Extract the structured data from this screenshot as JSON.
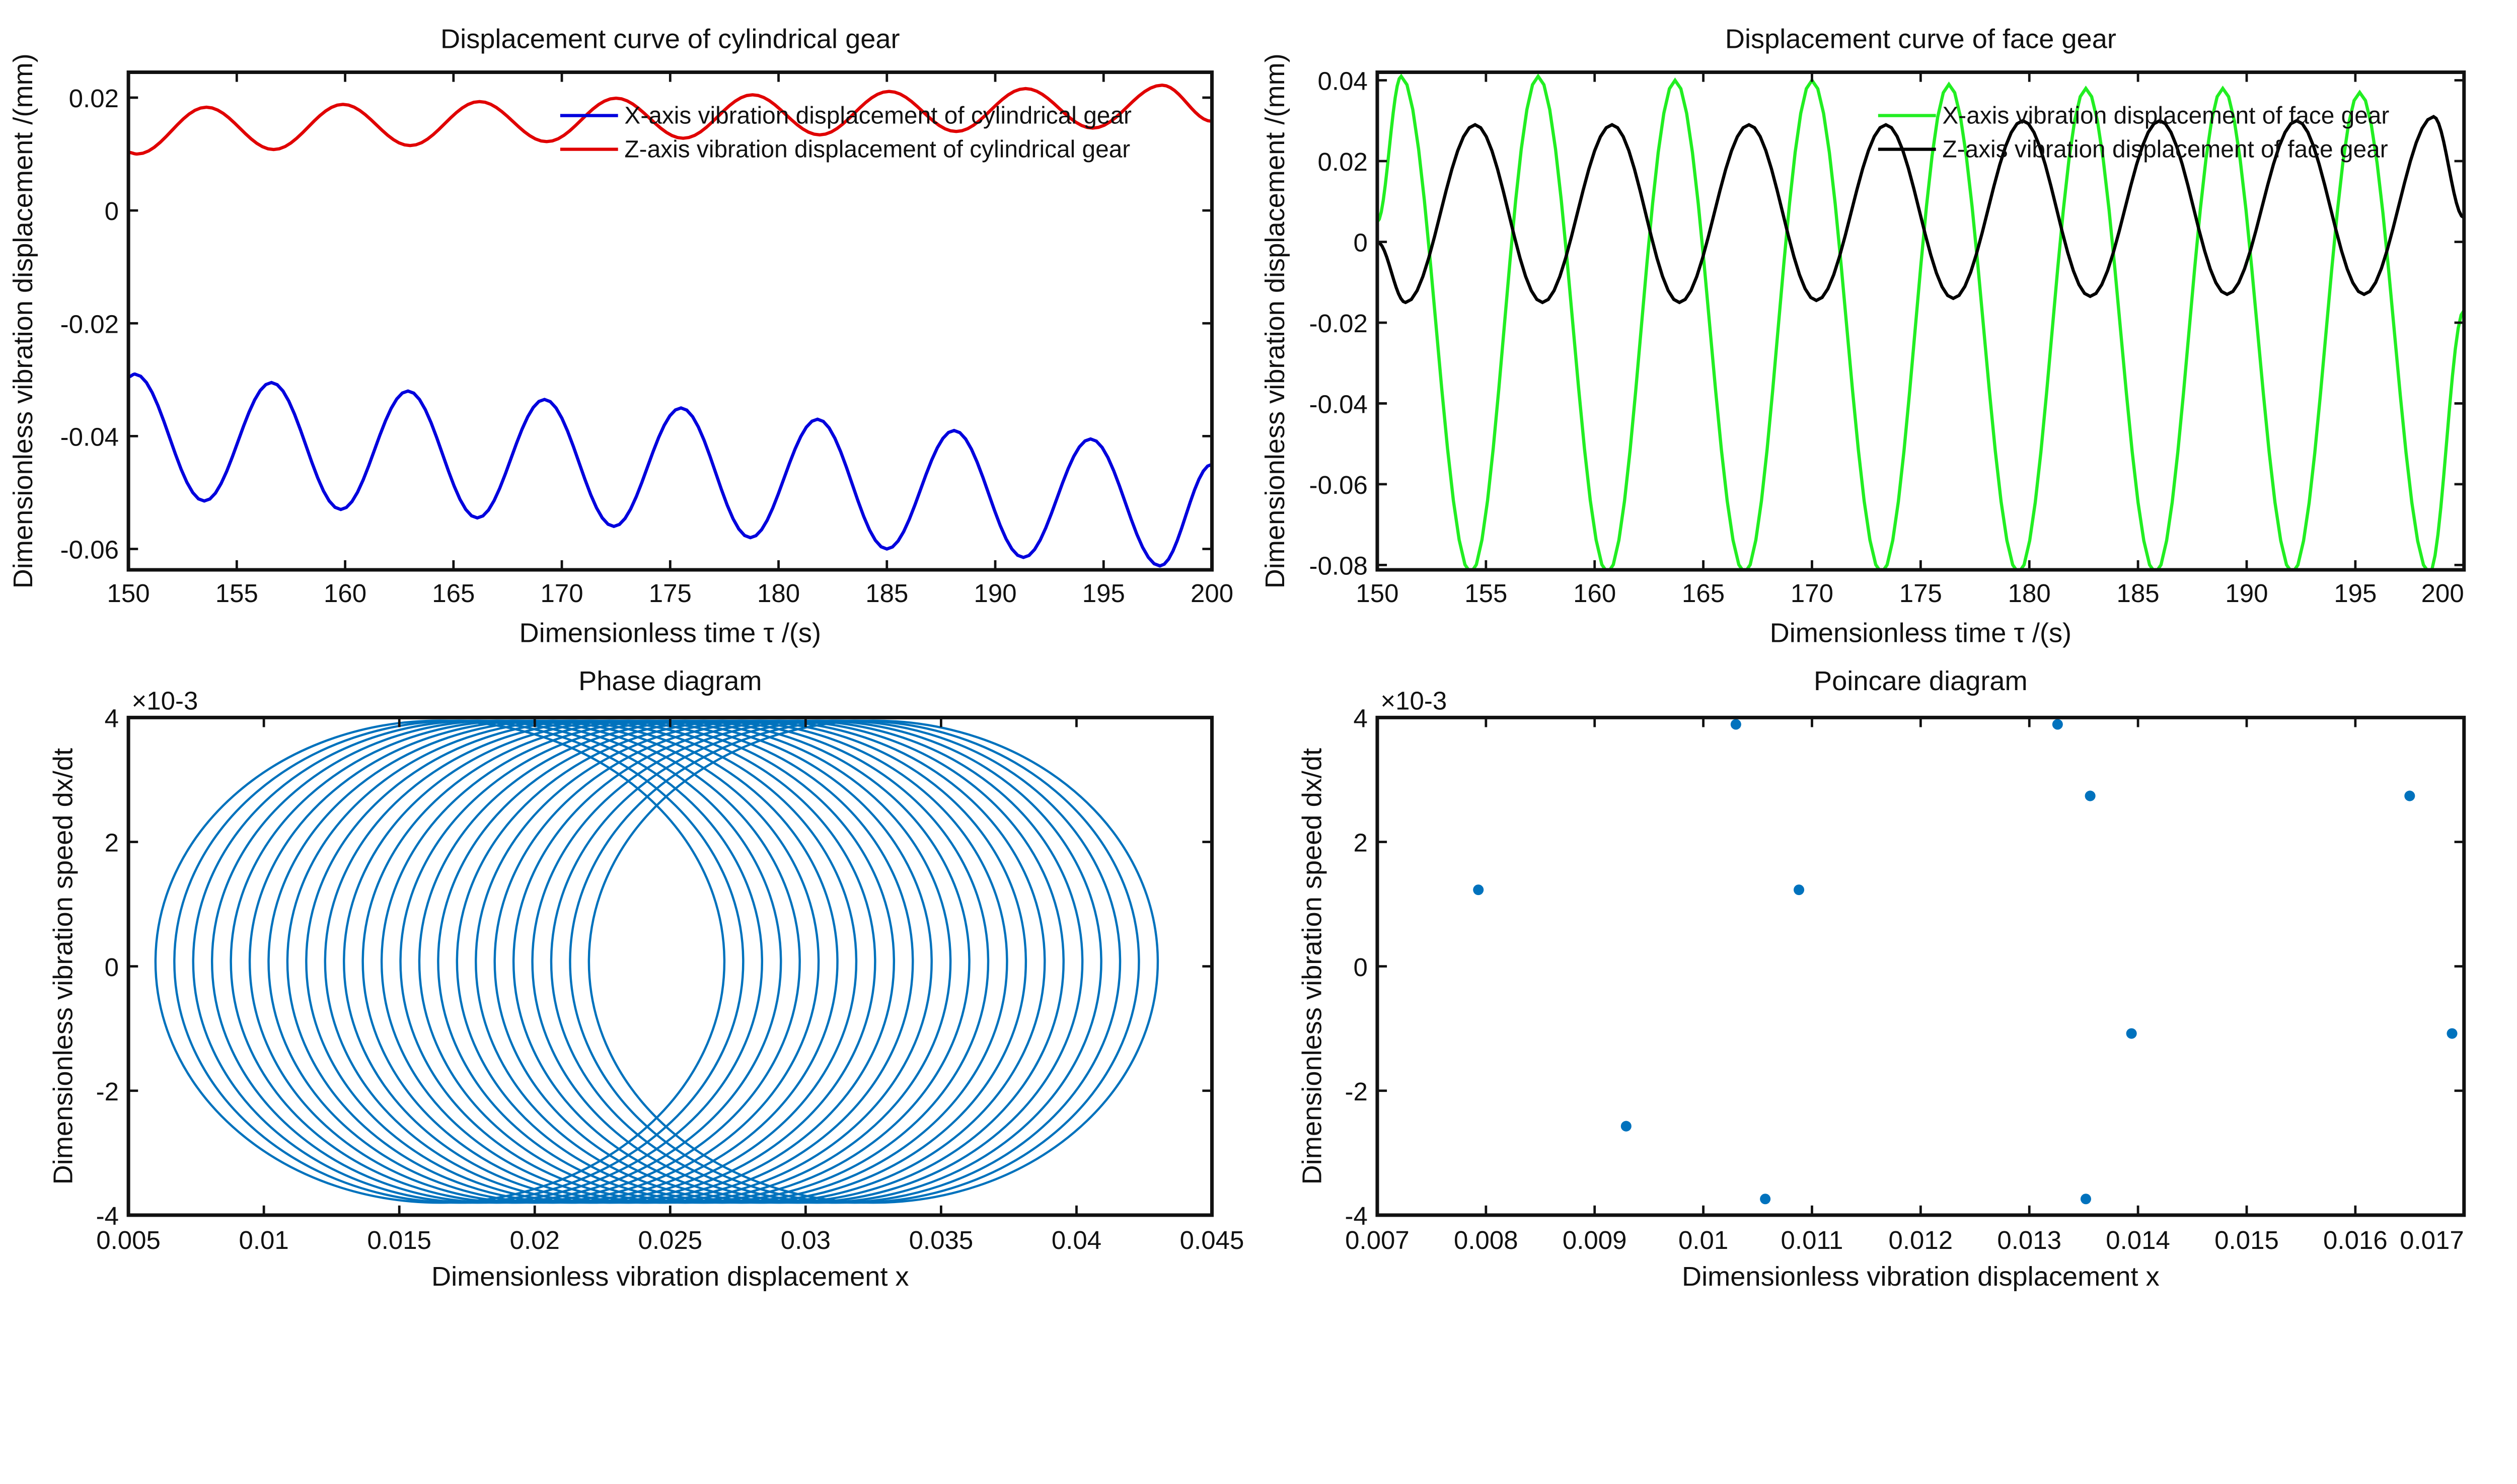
{
  "chart_data": [
    {
      "type": "line",
      "title": "Displacement curve of cylindrical gear",
      "xlabel": "Dimensionless time τ /(s)",
      "ylabel": "Dimensionless vibration displacement /(mm)",
      "xlim": [
        150,
        200
      ],
      "ylim": [
        -0.0637,
        0.0245
      ],
      "xticks": [
        150,
        155,
        160,
        165,
        170,
        175,
        180,
        185,
        190,
        195,
        200
      ],
      "xtick_labels": [
        "150",
        "155",
        "160",
        "165",
        "170",
        "175",
        "180",
        "185",
        "190",
        "195",
        "200"
      ],
      "yticks": [
        0.02,
        0,
        -0.02,
        -0.04,
        -0.06
      ],
      "ytick_labels": [
        "0.02",
        "0",
        "-0.02",
        "-0.04",
        "-0.06"
      ],
      "legend": "top-right",
      "series": [
        {
          "name": "X-axis vibration displacement of cylindrical gear",
          "color": "#0000dd",
          "extrema": [
            [
              150,
              -0.0295
            ],
            [
              150.3,
              -0.029
            ],
            [
              153.5,
              -0.0515
            ],
            [
              156.6,
              -0.0305
            ],
            [
              159.8,
              -0.053
            ],
            [
              162.9,
              -0.032
            ],
            [
              166.1,
              -0.0545
            ],
            [
              169.2,
              -0.0335
            ],
            [
              172.4,
              -0.056
            ],
            [
              175.5,
              -0.035
            ],
            [
              178.7,
              -0.058
            ],
            [
              181.8,
              -0.037
            ],
            [
              185.0,
              -0.06
            ],
            [
              188.1,
              -0.039
            ],
            [
              191.3,
              -0.0615
            ],
            [
              194.4,
              -0.0405
            ],
            [
              197.6,
              -0.063
            ],
            [
              200,
              -0.045
            ]
          ]
        },
        {
          "name": "Z-axis vibration displacement of cylindrical gear",
          "color": "#e00000",
          "extrema": [
            [
              150,
              0.0103
            ],
            [
              150.4,
              0.01
            ],
            [
              153.6,
              0.0183
            ],
            [
              156.7,
              0.0108
            ],
            [
              159.9,
              0.0188
            ],
            [
              163.0,
              0.0115
            ],
            [
              166.2,
              0.0193
            ],
            [
              169.3,
              0.0122
            ],
            [
              172.5,
              0.0199
            ],
            [
              175.6,
              0.0128
            ],
            [
              178.8,
              0.0205
            ],
            [
              181.9,
              0.0134
            ],
            [
              185.1,
              0.0211
            ],
            [
              188.2,
              0.014
            ],
            [
              191.4,
              0.0216
            ],
            [
              194.5,
              0.0146
            ],
            [
              197.7,
              0.0222
            ],
            [
              200,
              0.0158
            ]
          ]
        }
      ]
    },
    {
      "type": "line",
      "title": "Displacement curve of face gear",
      "xlabel": "Dimensionless time τ /(s)",
      "ylabel": "Dimensionless vibration displacement /(mm)",
      "xlim": [
        150,
        200
      ],
      "ylim": [
        -0.0812,
        0.042
      ],
      "xticks": [
        150,
        155,
        160,
        165,
        170,
        175,
        180,
        185,
        190,
        195,
        200
      ],
      "xtick_labels": [
        "150",
        "155",
        "160",
        "165",
        "170",
        "175",
        "180",
        "185",
        "190",
        "195",
        "200"
      ],
      "yticks": [
        0.04,
        0.02,
        0,
        -0.02,
        -0.04,
        -0.06,
        -0.08
      ],
      "ytick_labels": [
        "0.04",
        "0.02",
        "0",
        "-0.02",
        "-0.04",
        "-0.06",
        "-0.08"
      ],
      "legend": "top-right",
      "series": [
        {
          "name": "X-axis vibration displacement of face gear",
          "color": "#22ee22",
          "extrema": [
            [
              150,
              0.005
            ],
            [
              151.1,
              0.041
            ],
            [
              154.3,
              -0.082
            ],
            [
              157.4,
              0.041
            ],
            [
              160.6,
              -0.082
            ],
            [
              163.7,
              0.04
            ],
            [
              166.9,
              -0.082
            ],
            [
              170.0,
              0.04
            ],
            [
              173.2,
              -0.082
            ],
            [
              176.3,
              0.039
            ],
            [
              179.5,
              -0.082
            ],
            [
              182.6,
              0.038
            ],
            [
              185.8,
              -0.082
            ],
            [
              188.9,
              0.038
            ],
            [
              192.1,
              -0.082
            ],
            [
              195.2,
              0.037
            ],
            [
              198.4,
              -0.082
            ],
            [
              200,
              -0.017
            ]
          ]
        },
        {
          "name": "Z-axis vibration displacement of face gear",
          "color": "#000000",
          "extrema": [
            [
              150,
              0.0
            ],
            [
              151.3,
              -0.015
            ],
            [
              154.5,
              0.029
            ],
            [
              157.6,
              -0.015
            ],
            [
              160.8,
              0.029
            ],
            [
              163.9,
              -0.015
            ],
            [
              167.1,
              0.029
            ],
            [
              170.2,
              -0.0145
            ],
            [
              173.4,
              0.029
            ],
            [
              176.5,
              -0.014
            ],
            [
              179.7,
              0.03
            ],
            [
              182.8,
              -0.0135
            ],
            [
              186.0,
              0.03
            ],
            [
              189.1,
              -0.013
            ],
            [
              192.3,
              0.03
            ],
            [
              195.4,
              -0.013
            ],
            [
              198.6,
              0.031
            ],
            [
              200,
              0.006
            ]
          ]
        }
      ]
    },
    {
      "type": "line",
      "title": "Phase diagram",
      "xlabel": "Dimensionless vibration displacement x",
      "ylabel": "Dimensionless vibration speed dx/dt",
      "xlim": [
        0.005,
        0.045
      ],
      "ylim": [
        -4,
        4
      ],
      "y_scale_label": "×10-3",
      "y_multiplier_exponent": -3,
      "xticks": [
        0.005,
        0.01,
        0.015,
        0.02,
        0.025,
        0.03,
        0.035,
        0.04,
        0.045
      ],
      "xtick_labels": [
        "0.005",
        "0.01",
        "0.015",
        "0.02",
        "0.025",
        "0.03",
        "0.035",
        "0.04",
        "0.045"
      ],
      "yticks": [
        4,
        2,
        0,
        -2,
        -4
      ],
      "ytick_labels": [
        "4",
        "2",
        "0",
        "-2",
        "-4"
      ],
      "series": [
        {
          "name": "phase trajectory",
          "color": "#0072bd",
          "orbit_centers_x": [
            0.0165,
            0.0325
          ],
          "orbit_count": 24,
          "orbit_x_amplitude": 0.0105,
          "orbit_y_range": [
            -3.8,
            3.95
          ]
        }
      ]
    },
    {
      "type": "scatter",
      "title": "Poincare diagram",
      "xlabel": "Dimensionless vibration displacement x",
      "ylabel": "Dimensionless vibration speed dx/dt",
      "xlim": [
        0.007,
        0.017
      ],
      "ylim": [
        -4,
        4
      ],
      "y_scale_label": "×10-3",
      "y_multiplier_exponent": -3,
      "xticks": [
        0.007,
        0.008,
        0.009,
        0.01,
        0.011,
        0.012,
        0.013,
        0.014,
        0.015,
        0.016,
        0.017
      ],
      "xtick_labels": [
        "0.007",
        "0.008",
        "0.009",
        "0.01",
        "0.011",
        "0.012",
        "0.013",
        "0.014",
        "0.015",
        "0.016",
        "0.017"
      ],
      "yticks": [
        4,
        2,
        0,
        -2,
        -4
      ],
      "ytick_labels": [
        "4",
        "2",
        "0",
        "-2",
        "-4"
      ],
      "series": [
        {
          "name": "Poincare points",
          "color": "#0072bd",
          "points": [
            [
              0.00793,
              1.23
            ],
            [
              0.0103,
              3.89
            ],
            [
              0.01088,
              1.23
            ],
            [
              0.01326,
              3.89
            ],
            [
              0.01356,
              2.74
            ],
            [
              0.0165,
              2.74
            ],
            [
              0.01394,
              -1.08
            ],
            [
              0.01689,
              -1.08
            ],
            [
              0.00929,
              -2.57
            ],
            [
              0.01057,
              -3.74
            ],
            [
              0.01352,
              -3.74
            ]
          ]
        }
      ]
    }
  ]
}
